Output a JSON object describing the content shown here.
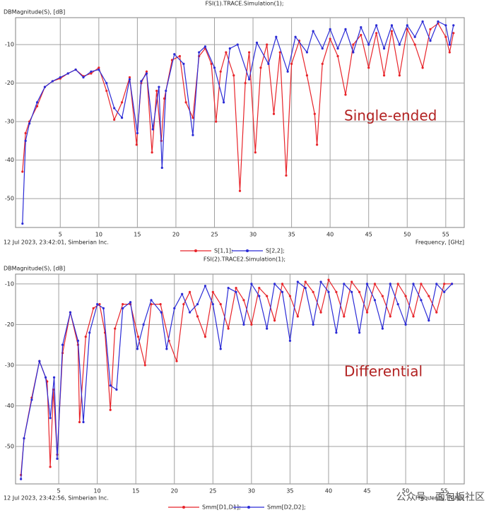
{
  "chart_data": [
    {
      "type": "line",
      "title": "FSI(1).TRACE.Simulation(1);",
      "ylabel": "DBMagnitude(S), [dB]",
      "xlabel": "Frequency, [GHz]",
      "footer": "12 Jul 2023, 23:42:01, Simberian Inc.",
      "annotation": "Single-ended",
      "annotation_color": "#b22222",
      "xlim": [
        -0.8,
        57.4
      ],
      "ylim": [
        -57.5,
        -3
      ],
      "xticks": [
        5,
        10,
        15,
        20,
        25,
        30,
        35,
        40,
        45,
        50,
        55
      ],
      "yticks": [
        -10,
        -20,
        -30,
        -40,
        -50
      ],
      "grid": true,
      "series": [
        {
          "name": "S[1,1];",
          "color": "#e8242a",
          "x": [
            0.1,
            0.5,
            1,
            2,
            3,
            4,
            5,
            6,
            7,
            8,
            9,
            10,
            11,
            12,
            13,
            14,
            14.9,
            15.5,
            16.2,
            16.9,
            17.5,
            18.1,
            18.5,
            19.5,
            20.5,
            21.3,
            22.2,
            23,
            23.8,
            24.6,
            25.2,
            25.8,
            26.5,
            27.5,
            28.3,
            29,
            29.5,
            30.3,
            31,
            31.8,
            32.7,
            33.5,
            34.3,
            35,
            36,
            37,
            38,
            38.3,
            39,
            40,
            41,
            42,
            43,
            44,
            45,
            46,
            47,
            48,
            49,
            50,
            51,
            52,
            53,
            54,
            55,
            55.5,
            56
          ],
          "values": [
            -43,
            -33,
            -30,
            -26,
            -21,
            -19.5,
            -18.8,
            -17.5,
            -16.5,
            -18.2,
            -17.5,
            -16,
            -22,
            -29.5,
            -25,
            -18.5,
            -36,
            -20,
            -17,
            -38,
            -22,
            -35,
            -24,
            -14,
            -13,
            -25,
            -29,
            -13,
            -11,
            -15,
            -30,
            -17,
            -12,
            -18,
            -48,
            -20,
            -12,
            -38,
            -16,
            -10,
            -28,
            -12,
            -44,
            -15,
            -9,
            -18,
            -28,
            -36,
            -15,
            -8.5,
            -13,
            -23,
            -10,
            -7.5,
            -16,
            -7,
            -18,
            -6.5,
            -18,
            -6,
            -10,
            -16,
            -6,
            -4.5,
            -8,
            -12,
            -7
          ]
        },
        {
          "name": "S[2,2];",
          "color": "#2b2bd6",
          "x": [
            0.1,
            0.5,
            1,
            2,
            3,
            4,
            5,
            6,
            7,
            8,
            9,
            10,
            11,
            12,
            13,
            14,
            15,
            15.5,
            16.2,
            17,
            17.8,
            18.2,
            18.7,
            19.8,
            21,
            22.2,
            23,
            23.8,
            25,
            26.2,
            27,
            28,
            29.5,
            30.5,
            32,
            33,
            34.5,
            35.5,
            37,
            37.8,
            39,
            40,
            41,
            42,
            43,
            44,
            45,
            46,
            47,
            48,
            49,
            50,
            51,
            52,
            53,
            54,
            55,
            55.5,
            56
          ],
          "values": [
            -56.5,
            -35,
            -30.5,
            -25,
            -21,
            -19.5,
            -18.5,
            -17.5,
            -16.5,
            -18.5,
            -17,
            -16.5,
            -20,
            -26.5,
            -29,
            -19,
            -33,
            -19.5,
            -17.5,
            -32,
            -21,
            -42,
            -22,
            -12.5,
            -15,
            -33.5,
            -12,
            -10.5,
            -16,
            -25,
            -11,
            -10,
            -19,
            -9.5,
            -15,
            -8,
            -17,
            -8,
            -12,
            -6.5,
            -11,
            -6,
            -11,
            -6,
            -12,
            -5.5,
            -10,
            -5,
            -11,
            -5,
            -10,
            -5,
            -8,
            -4,
            -9,
            -4,
            -5,
            -10,
            -5
          ]
        }
      ]
    },
    {
      "type": "line",
      "title": "FSI(2).TRACE2.Simulation(1);",
      "ylabel": "DBMagnitude(S), [dB]",
      "xlabel": "Frequency, [GHz]",
      "footer": "12 Jul 2023, 23:42:56, Simberian Inc.",
      "annotation": "Differential",
      "annotation_color": "#b22222",
      "xlim": [
        -0.6,
        57.6
      ],
      "ylim": [
        -59.2,
        -7.6
      ],
      "xticks": [
        5,
        10,
        15,
        20,
        25,
        30,
        35,
        40,
        45,
        50,
        55
      ],
      "yticks": [
        -10,
        -20,
        -30,
        -40,
        -50
      ],
      "grid": true,
      "series": [
        {
          "name": "Smm[D1,D1];",
          "color": "#e8242a",
          "x": [
            0.1,
            0.5,
            1.5,
            2.5,
            3.5,
            3.9,
            4.3,
            4.8,
            5.5,
            6.5,
            7.5,
            7.7,
            8.5,
            9.5,
            10.3,
            11,
            11.7,
            12.3,
            13.3,
            14.3,
            15.3,
            16.2,
            17,
            18.2,
            19.3,
            20.3,
            21.2,
            22,
            23,
            24,
            25,
            26,
            27,
            28,
            29,
            30,
            31,
            32,
            33,
            34,
            35,
            36,
            37,
            38,
            39,
            40,
            41,
            42,
            43,
            44,
            45,
            46,
            47,
            48,
            49,
            50,
            51,
            52,
            53,
            54,
            55,
            56
          ],
          "values": [
            -57,
            -48,
            -38,
            -29,
            -34,
            -55,
            -36,
            -52,
            -27,
            -17,
            -25,
            -44,
            -23,
            -16,
            -15,
            -22,
            -41,
            -21,
            -15,
            -15,
            -23,
            -30,
            -15,
            -15,
            -24,
            -29,
            -15,
            -12,
            -18,
            -23,
            -12,
            -15,
            -21,
            -11,
            -14,
            -20,
            -11,
            -13,
            -19,
            -10,
            -13,
            -18,
            -9.5,
            -12,
            -17,
            -9,
            -12,
            -18,
            -9.5,
            -12,
            -17,
            -10,
            -13,
            -18,
            -10,
            -13,
            -18,
            -10,
            -13,
            -17,
            -10,
            -10
          ]
        },
        {
          "name": "Smm[D2,D2];",
          "color": "#2b2bd6",
          "x": [
            0.1,
            0.5,
            1.5,
            2.5,
            3.3,
            3.9,
            4.4,
            4.8,
            5.5,
            6.5,
            7.5,
            8.2,
            9,
            10,
            10.8,
            11.7,
            12.5,
            13.3,
            14.3,
            15.2,
            16,
            17,
            18.3,
            19,
            20,
            21,
            22,
            23,
            24,
            25,
            26,
            27,
            28,
            29,
            30,
            31,
            32,
            33,
            34,
            35,
            36,
            37,
            38,
            39,
            40,
            41,
            42,
            43,
            44,
            45,
            46,
            47,
            48,
            49,
            50,
            51,
            52,
            53,
            54,
            55,
            56
          ],
          "values": [
            -58,
            -48,
            -38.5,
            -29,
            -33,
            -43,
            -33,
            -53,
            -25,
            -17,
            -24,
            -44,
            -22,
            -15,
            -16,
            -35,
            -36,
            -16,
            -14.5,
            -26,
            -20,
            -14,
            -17,
            -26,
            -16,
            -12.5,
            -17,
            -15,
            -10.5,
            -15,
            -26,
            -11,
            -12,
            -20,
            -10,
            -13,
            -21,
            -10,
            -12,
            -24,
            -9.5,
            -11,
            -20,
            -9.5,
            -12,
            -22,
            -10,
            -12,
            -22,
            -10,
            -14,
            -21,
            -10,
            -15,
            -20,
            -10,
            -14,
            -19,
            -10,
            -12,
            -10
          ]
        }
      ]
    }
  ],
  "watermark": "公众号 · 面包板社区"
}
